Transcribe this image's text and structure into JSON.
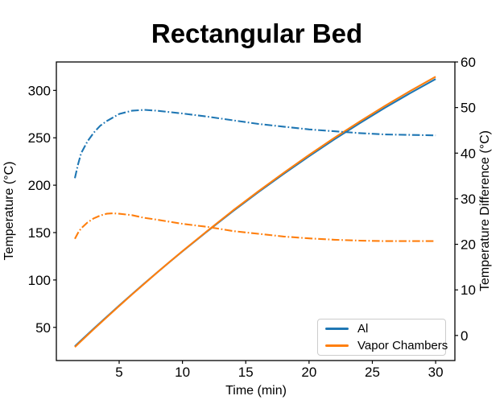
{
  "colors": {
    "al": "#1f77b4",
    "vapor_chambers": "#ff7f0e",
    "axis": "#000000",
    "legend_border": "#cccccc",
    "background": "#ffffff"
  },
  "legend": {
    "items": [
      {
        "label": "Al",
        "color": "#1f77b4",
        "line_style": "solid"
      },
      {
        "label": "Vapor Chambers",
        "color": "#ff7f0e",
        "line_style": "solid"
      }
    ]
  },
  "chart_data": {
    "type": "line",
    "title": "Rectangular Bed",
    "xlabel": "Time (min)",
    "ylabel_left": "Temperature (°C)",
    "ylabel_right": "Temperature Difference (°C)",
    "x_ticks": [
      5,
      10,
      15,
      20,
      25,
      30
    ],
    "y_left_ticks": [
      50,
      100,
      150,
      200,
      250,
      300
    ],
    "y_right_ticks": [
      0,
      10,
      20,
      30,
      40,
      50,
      60
    ],
    "x_range": [
      0.04,
      31.52
    ],
    "y_left_range": [
      15,
      330
    ],
    "y_right_range": [
      -5.5,
      60
    ],
    "grid": false,
    "legend_position": "lower right",
    "series": [
      {
        "name": "Al temperature",
        "axis": "left",
        "style": "solid",
        "color": "#1f77b4",
        "x": [
          1.5,
          2,
          3,
          4,
          5,
          6,
          7,
          8,
          9,
          10,
          12,
          14,
          16,
          18,
          20,
          22,
          24,
          26,
          28,
          30
        ],
        "y": [
          30,
          36.3,
          48.7,
          60.9,
          73,
          84.8,
          96.4,
          107.9,
          119.2,
          130.2,
          151.8,
          172.7,
          192.7,
          212,
          230.6,
          248.4,
          265.4,
          281.7,
          297.2,
          312
        ]
      },
      {
        "name": "Vapor Chambers temperature",
        "axis": "left",
        "style": "solid",
        "color": "#ff7f0e",
        "x": [
          1.5,
          2,
          3,
          4,
          5,
          6,
          7,
          8,
          9,
          10,
          12,
          14,
          16,
          18,
          20,
          22,
          24,
          26,
          28,
          30
        ],
        "y": [
          29.2,
          35.6,
          48.1,
          60.4,
          72.6,
          84.5,
          96.2,
          107.9,
          119.3,
          130.4,
          152.2,
          173.4,
          193.6,
          213.1,
          231.9,
          250,
          267.2,
          283.7,
          299.5,
          314.5
        ]
      },
      {
        "name": "Al temperature difference",
        "axis": "right",
        "style": "dashdot",
        "color": "#1f77b4",
        "x": [
          1.5,
          1.75,
          2,
          2.5,
          3,
          3.5,
          4,
          5,
          6,
          7,
          8,
          10,
          12,
          14,
          16,
          18,
          20,
          22,
          24,
          26,
          28,
          30
        ],
        "y": [
          34.5,
          37.5,
          40,
          42.6,
          44.5,
          46,
          47,
          48.6,
          49.3,
          49.5,
          49.3,
          48.7,
          48,
          47.2,
          46.4,
          45.8,
          45.2,
          44.8,
          44.4,
          44.1,
          44,
          43.9
        ]
      },
      {
        "name": "Vapor Chambers temperature difference",
        "axis": "right",
        "style": "dashdot",
        "color": "#ff7f0e",
        "x": [
          1.5,
          1.75,
          2,
          2.5,
          3,
          3.5,
          4,
          4.5,
          5,
          6,
          7,
          8,
          10,
          12,
          14,
          16,
          18,
          20,
          22,
          24,
          26,
          28,
          30
        ],
        "y": [
          21.2,
          22.5,
          23.5,
          24.8,
          25.7,
          26.3,
          26.7,
          26.8,
          26.7,
          26.4,
          25.8,
          25.4,
          24.5,
          23.8,
          22.9,
          22.3,
          21.7,
          21.3,
          21,
          20.8,
          20.7,
          20.7,
          20.7
        ]
      }
    ]
  }
}
